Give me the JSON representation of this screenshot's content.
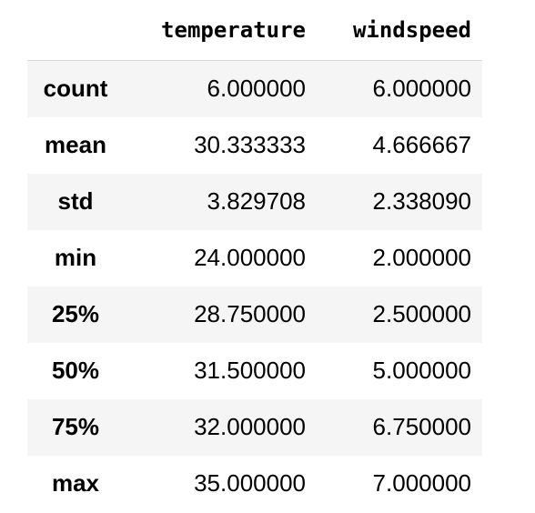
{
  "table": {
    "index_header": "",
    "columns": [
      "temperature",
      "windspeed"
    ],
    "rows": [
      {
        "label": "count",
        "values": [
          "6.000000",
          "6.000000"
        ]
      },
      {
        "label": "mean",
        "values": [
          "30.333333",
          "4.666667"
        ]
      },
      {
        "label": "std",
        "values": [
          "3.829708",
          "2.338090"
        ]
      },
      {
        "label": "min",
        "values": [
          "24.000000",
          "2.000000"
        ]
      },
      {
        "label": "25%",
        "values": [
          "28.750000",
          "2.500000"
        ]
      },
      {
        "label": "50%",
        "values": [
          "31.500000",
          "5.000000"
        ]
      },
      {
        "label": "75%",
        "values": [
          "32.000000",
          "6.750000"
        ]
      },
      {
        "label": "max",
        "values": [
          "35.000000",
          "7.000000"
        ]
      }
    ]
  },
  "colors": {
    "stripe": "#f5f5f5",
    "header_rule": "#d8d8d8",
    "text": "#000000"
  }
}
